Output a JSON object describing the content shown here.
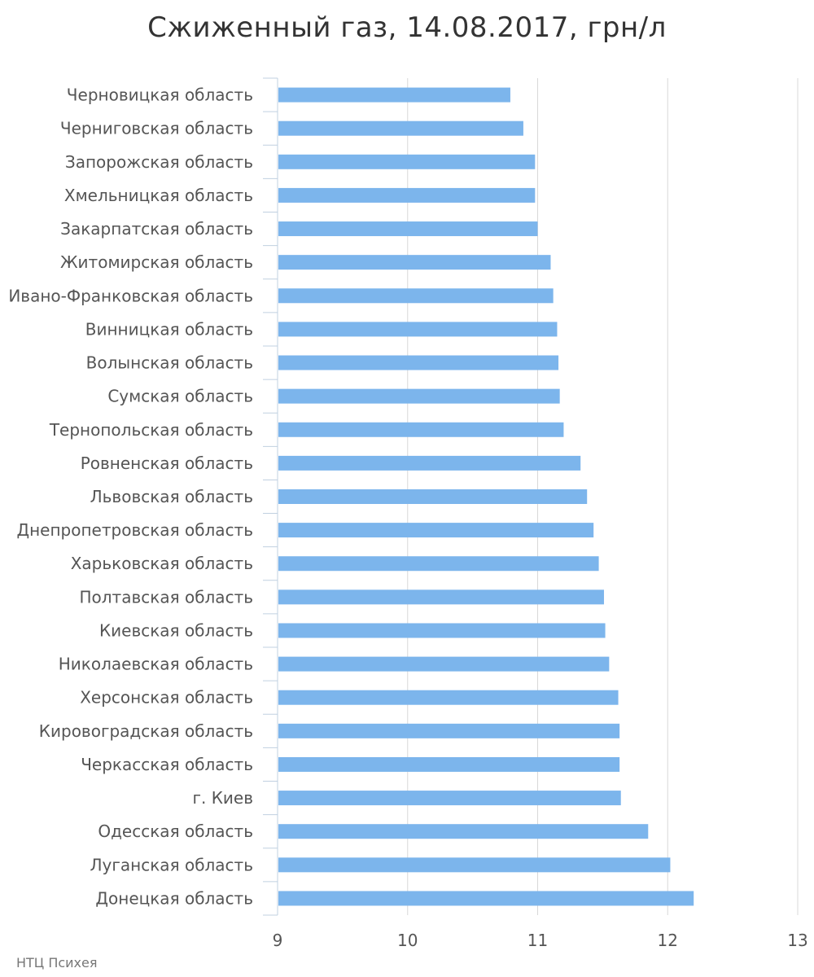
{
  "chart_data": {
    "type": "bar",
    "orientation": "horizontal",
    "title": "Сжиженный газ, 14.08.2017, грн/л",
    "categories": [
      "Черновицкая область",
      "Черниговская область",
      "Запорожская область",
      "Хмельницкая область",
      "Закарпатская область",
      "Житомирская область",
      "Ивано-Франковская область",
      "Винницкая область",
      "Волынская область",
      "Сумская область",
      "Тернопольская область",
      "Ровненская область",
      "Львовская область",
      "Днепропетровская область",
      "Харьковская область",
      "Полтавская область",
      "Киевская область",
      "Николаевская область",
      "Херсонская область",
      "Кировоградская область",
      "Черкасская область",
      "г. Киев",
      "Одесская область",
      "Луганская область",
      "Донецкая область"
    ],
    "values": [
      10.79,
      10.89,
      10.98,
      10.98,
      11.0,
      11.1,
      11.12,
      11.15,
      11.16,
      11.17,
      11.2,
      11.33,
      11.38,
      11.43,
      11.47,
      11.51,
      11.52,
      11.55,
      11.62,
      11.63,
      11.63,
      11.64,
      11.85,
      12.02,
      12.2
    ],
    "xlim": [
      9,
      13
    ],
    "xticks": [
      "9",
      "10",
      "11",
      "12",
      "13"
    ],
    "xlabel": "",
    "ylabel": "",
    "grid": "vertical",
    "bar_color": "#7cb5ec",
    "credit": "НТЦ Психея"
  }
}
